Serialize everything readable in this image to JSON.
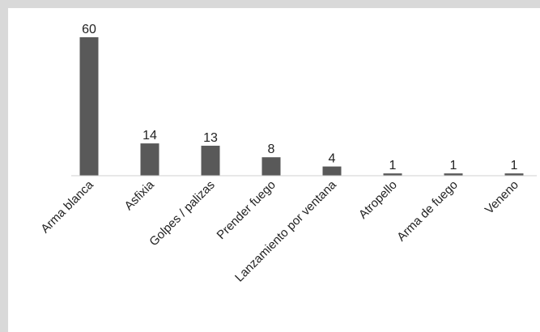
{
  "chart_data": {
    "type": "bar",
    "categories": [
      "Arma blanca",
      "Asfixia",
      "Golpes / palizas",
      "Prender fuego",
      "Lanzamiento por ventana",
      "Atropello",
      "Arma de fuego",
      "Veneno"
    ],
    "values": [
      60,
      14,
      13,
      8,
      4,
      1,
      1,
      1
    ],
    "data_labels": [
      "60",
      "14",
      "13",
      "8",
      "4",
      "1",
      "1",
      "1"
    ],
    "title": "",
    "xlabel": "",
    "ylabel": "",
    "ylim": [
      0,
      60
    ],
    "grid": false,
    "legend": "none",
    "bar_color": "#595959"
  }
}
